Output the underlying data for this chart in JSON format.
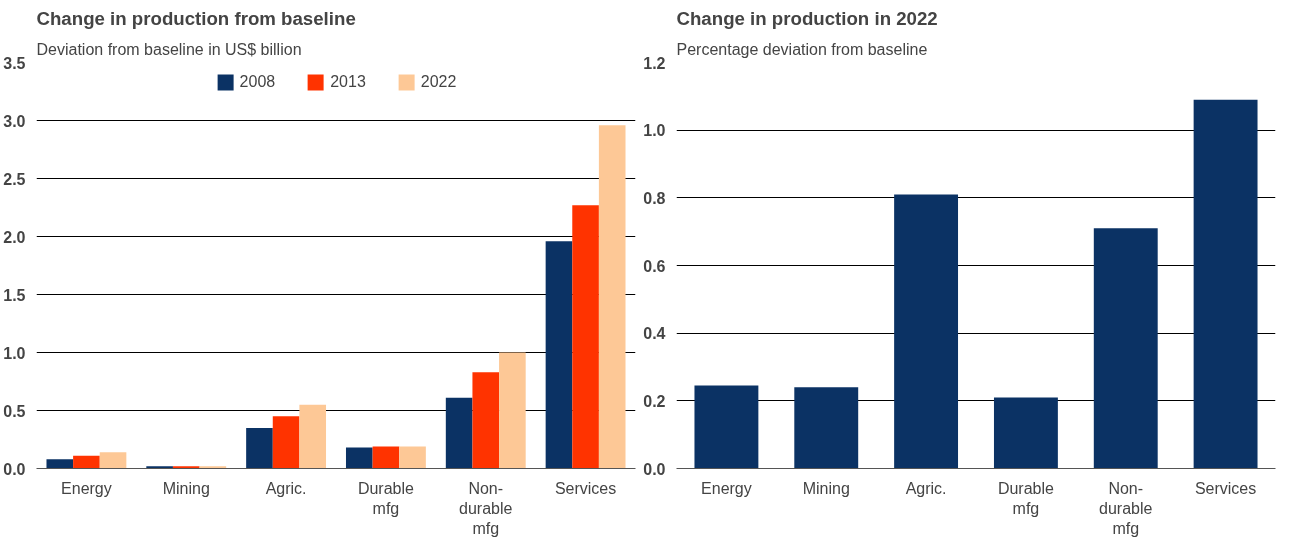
{
  "chart_data": [
    {
      "type": "bar",
      "title": "Change in production from baseline",
      "subtitle": "Deviation from baseline in US$ billion",
      "categories": [
        "Energy",
        "Mining",
        "Agric.",
        "Durable\nmfg",
        "Non-\ndurable\nmfg",
        "Services"
      ],
      "series": [
        {
          "name": "2008",
          "color": "#0b3264",
          "values": [
            0.08,
            0.02,
            0.35,
            0.18,
            0.61,
            1.96
          ]
        },
        {
          "name": "2013",
          "color": "#ff3300",
          "values": [
            0.11,
            0.02,
            0.45,
            0.19,
            0.83,
            2.27
          ]
        },
        {
          "name": "2022",
          "color": "#fdc896",
          "values": [
            0.14,
            0.02,
            0.55,
            0.19,
            1.0,
            2.96
          ]
        }
      ],
      "ylim": [
        0,
        3.5
      ],
      "yticks": [
        {
          "value": 0,
          "label": "0.0"
        },
        0.5,
        {
          "value": 1,
          "label": "1.0"
        },
        1.5,
        {
          "value": 2,
          "label": "2.0"
        },
        2.5,
        {
          "value": 3,
          "label": "3.0"
        },
        3.5
      ],
      "grid": "y",
      "legend": "top"
    },
    {
      "type": "bar",
      "title": "Change in production in 2022",
      "subtitle": "Percentage deviation from baseline",
      "categories": [
        "Energy",
        "Mining",
        "Agric.",
        "Durable\nmfg",
        "Non-\ndurable\nmfg",
        "Services"
      ],
      "series": [
        {
          "color": "#0b3264",
          "values": [
            0.245,
            0.24,
            0.81,
            0.21,
            0.71,
            1.09
          ]
        }
      ],
      "ylim": [
        0,
        1.2
      ],
      "yticks": [
        {
          "value": 0,
          "label": "0.0"
        },
        0.2,
        0.4,
        0.6,
        0.8,
        {
          "value": 1,
          "label": "1.0"
        },
        1.2
      ],
      "grid": "y",
      "legend": false
    }
  ]
}
